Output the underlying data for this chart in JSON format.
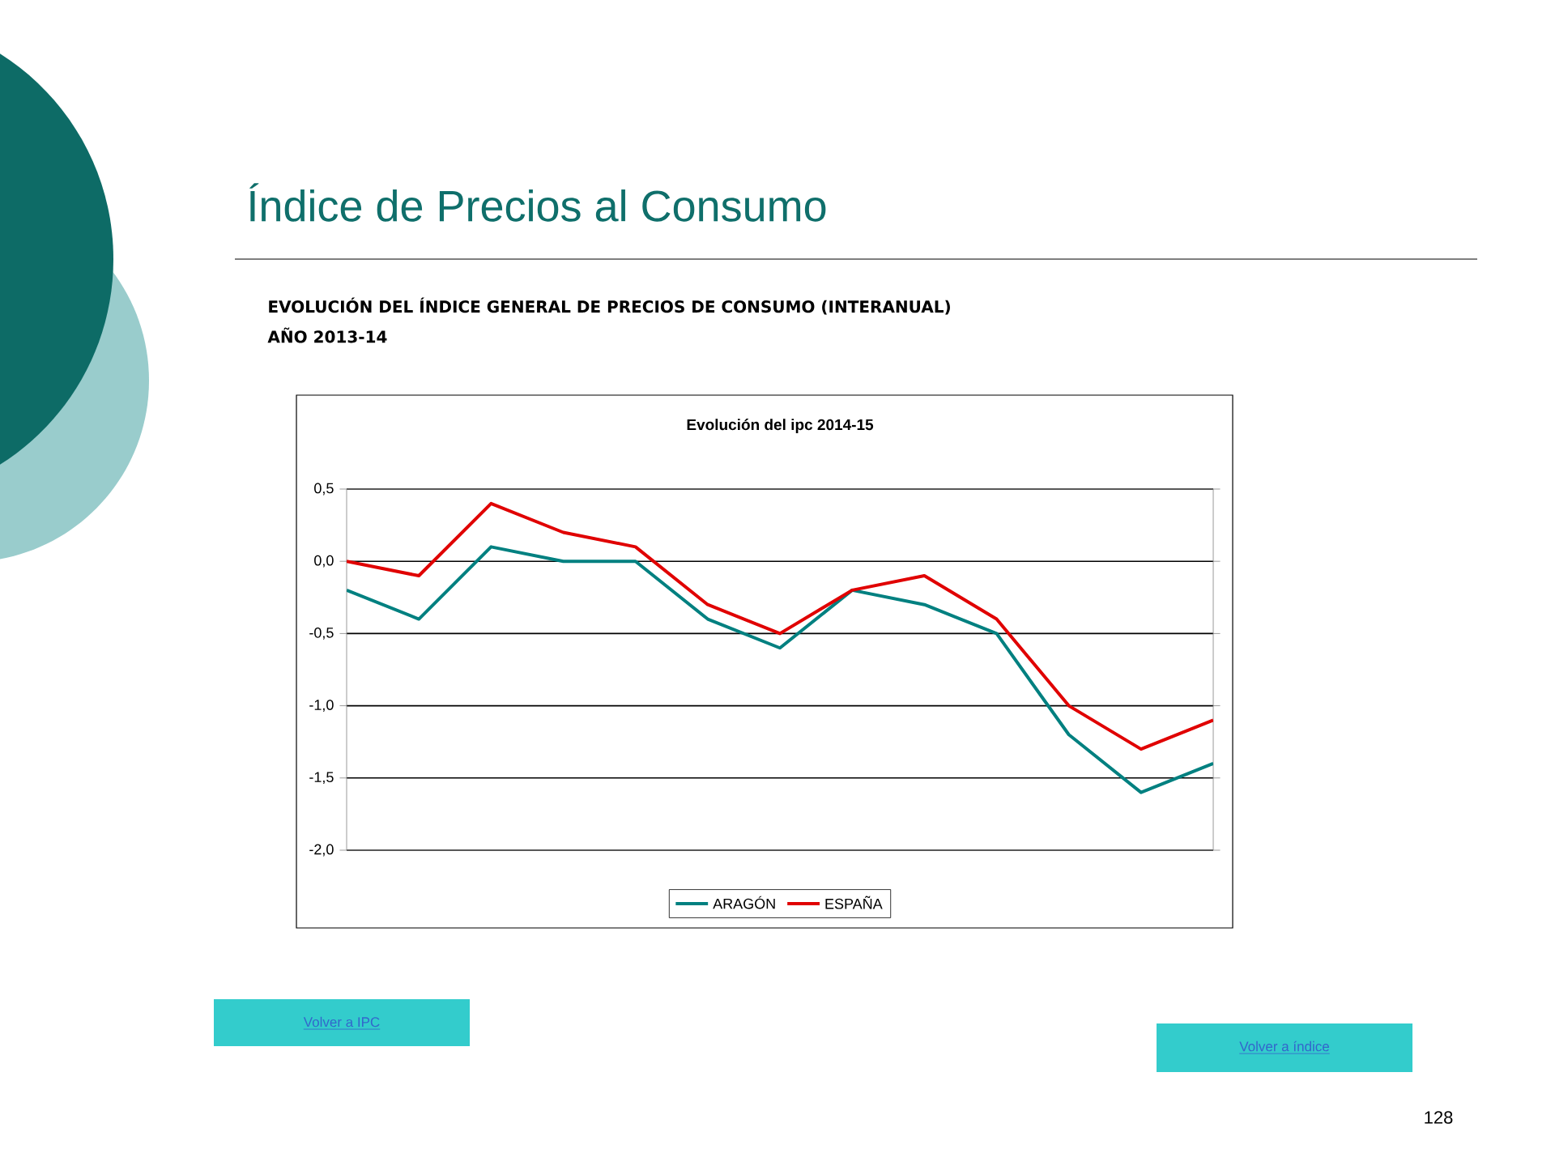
{
  "chart_data": {
    "type": "line",
    "title": "Evolución del ipc 2014-15",
    "categories": [
      null,
      null,
      null,
      null,
      null,
      null,
      null,
      null,
      null,
      null,
      null,
      null,
      null
    ],
    "series": [
      {
        "name": "ARAGÓN",
        "color": "#008080",
        "values": [
          -0.2,
          -0.4,
          0.1,
          0.0,
          0.0,
          -0.4,
          -0.6,
          -0.2,
          -0.3,
          -0.5,
          -1.2,
          -1.6,
          -1.4
        ]
      },
      {
        "name": "ESPAÑA",
        "color": "#e00000",
        "values": [
          0.0,
          -0.1,
          0.4,
          0.2,
          0.1,
          -0.3,
          -0.5,
          -0.2,
          -0.1,
          -0.4,
          -1.0,
          -1.3,
          -1.1
        ]
      }
    ],
    "ylim": [
      -2.0,
      0.5
    ],
    "yticks": [
      {
        "value": -2.0,
        "label": "-2,0"
      },
      {
        "value": -1.5,
        "label": "-1,5"
      },
      {
        "value": -1.0,
        "label": "-1,0"
      },
      {
        "value": -0.5,
        "label": "-0,5"
      },
      {
        "value": 0.0,
        "label": "0,0"
      },
      {
        "value": 0.5,
        "label": "0,5"
      }
    ],
    "grid": "y",
    "legend": "bottom",
    "marker": "none",
    "line_style": "solid",
    "annotations": [
      "Índice de Precios al Consumo",
      "EVOLUCIÓN DEL ÍNDICE GENERAL DE PRECIOS DE CONSUMO (INTERANUAL)",
      "AÑO 2013-14",
      "Volver a IPC",
      "Volver a índice",
      "128"
    ]
  }
}
